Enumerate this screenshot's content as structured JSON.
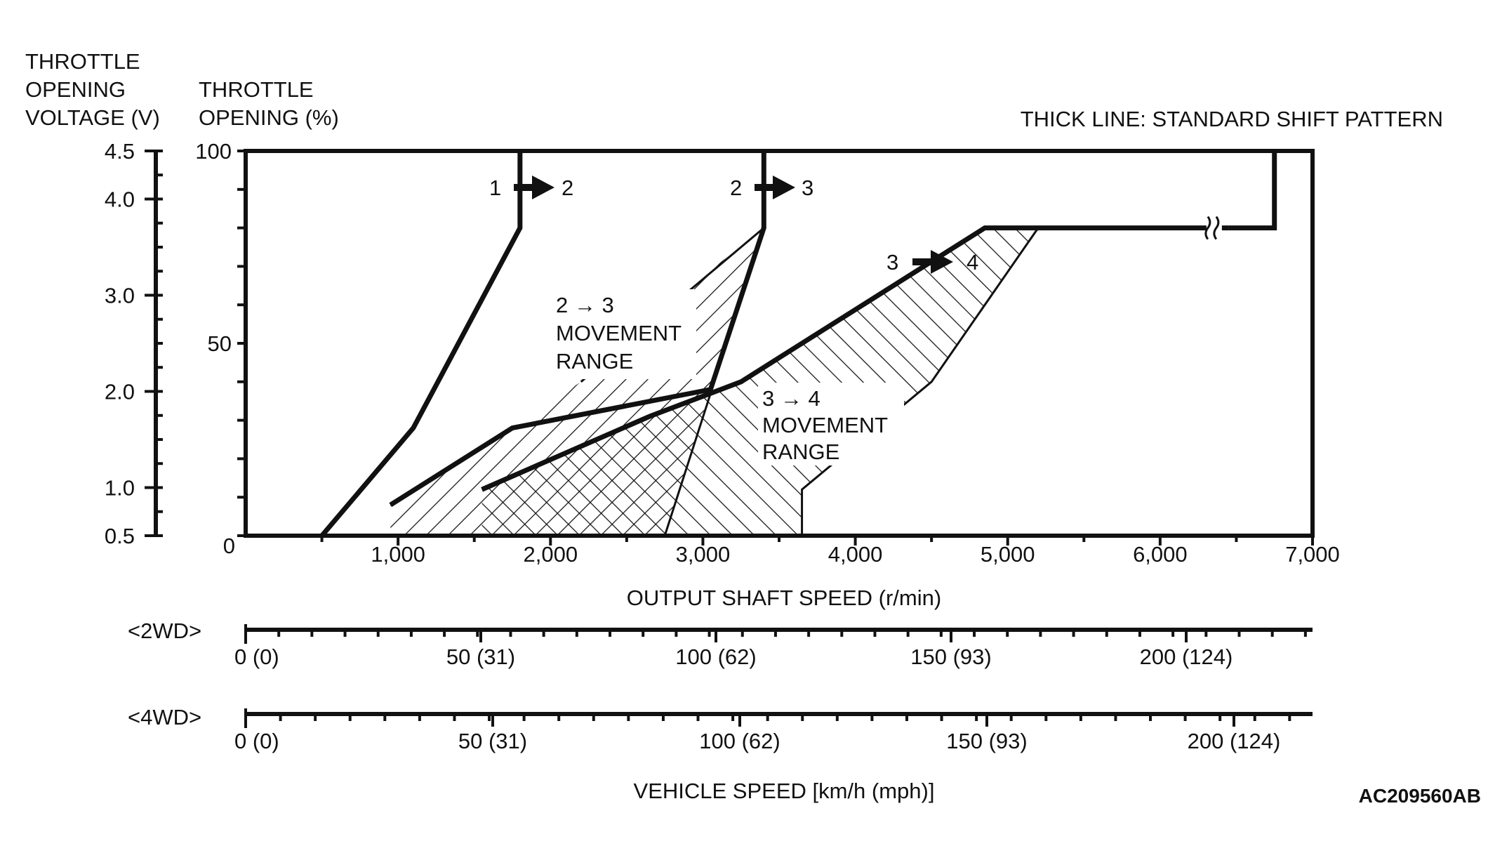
{
  "chart_data": {
    "type": "line",
    "title": "THICK LINE: STANDARD SHIFT PATTERN",
    "figure_id": "AC209560AB",
    "left_axis_title": [
      "THROTTLE",
      "OPENING",
      "VOLTAGE (V)"
    ],
    "inner_axis_title": [
      "THROTTLE",
      "OPENING (%)"
    ],
    "voltage_ticks": [
      "4.5",
      "4.0",
      "3.0",
      "2.0",
      "1.0",
      "0.5"
    ],
    "throttle_ticks": [
      "100",
      "50",
      "0"
    ],
    "x_ticks": [
      "1,000",
      "2,000",
      "3,000",
      "4,000",
      "5,000",
      "6,000",
      "7,000"
    ],
    "xlabel": "OUTPUT SHAFT SPEED (r/min)",
    "xlim": [
      0,
      7000
    ],
    "ylim": [
      0,
      100
    ],
    "wd2_label": "<2WD>",
    "wd2_ticks": [
      "0 (0)",
      "50 (31)",
      "100 (62)",
      "150 (93)",
      "200 (124)"
    ],
    "wd4_label": "<4WD>",
    "wd4_ticks": [
      "0 (0)",
      "50 (31)",
      "100 (62)",
      "150 (93)",
      "200 (124)"
    ],
    "vehicle_label": "VEHICLE SPEED [km/h (mph)]",
    "shift_labels": {
      "s12_from": "1",
      "s12_to": "2",
      "s23_from": "2",
      "s23_to": "3",
      "s34_from": "3",
      "s34_to": "4"
    },
    "range_23": [
      "2 → 3",
      "MOVEMENT",
      "RANGE"
    ],
    "range_34": [
      "3 → 4",
      "MOVEMENT",
      "RANGE"
    ],
    "series": [
      {
        "name": "1→2 standard",
        "points": [
          [
            500,
            0
          ],
          [
            1100,
            28
          ],
          [
            1800,
            80
          ],
          [
            1800,
            100
          ]
        ]
      },
      {
        "name": "2→3 standard",
        "points": [
          [
            950,
            8
          ],
          [
            1750,
            28
          ],
          [
            3050,
            38
          ],
          [
            3400,
            80
          ],
          [
            3400,
            100
          ]
        ]
      },
      {
        "name": "3→4 standard",
        "points": [
          [
            1550,
            12
          ],
          [
            2650,
            31
          ],
          [
            3250,
            40
          ],
          [
            4850,
            80
          ],
          [
            6450,
            80
          ]
        ]
      },
      {
        "name": "3→4 standard (cont.)",
        "points": [
          [
            6750,
            100
          ],
          [
            6750,
            80
          ],
          [
            6450,
            80
          ]
        ]
      },
      {
        "name": "2→3 range upper edge",
        "points": [
          [
            2200,
            40
          ],
          [
            3400,
            80
          ]
        ]
      },
      {
        "name": "2→3 range right edge",
        "points": [
          [
            2750,
            0
          ],
          [
            3400,
            80
          ]
        ]
      },
      {
        "name": "3→4 range right edge",
        "points": [
          [
            3650,
            0
          ],
          [
            3650,
            12
          ],
          [
            4500,
            40
          ],
          [
            5200,
            80
          ]
        ]
      }
    ]
  }
}
